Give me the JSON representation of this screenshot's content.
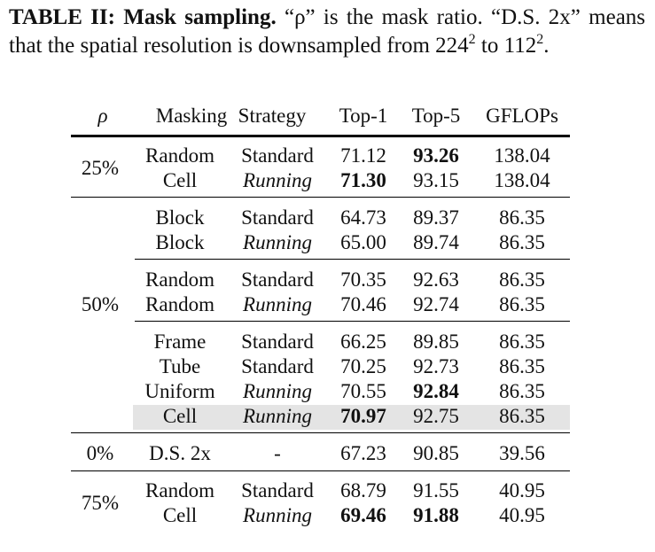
{
  "caption": {
    "label": "TABLE II:",
    "bold": "Mask sampling.",
    "text_1": "“ρ” is the mask ratio. “D.S. 2x” means that the spatial resolution is downsampled from 224",
    "sup_1": "2",
    "text_2": " to 112",
    "sup_2": "2",
    "text_3": "."
  },
  "table": {
    "headers": {
      "rho": "ρ",
      "masking": "Masking",
      "strategy": "Strategy",
      "top1": "Top-1",
      "top5": "Top-5",
      "gflops": "GFLOPs"
    },
    "groups": [
      {
        "ratio": "25%",
        "rows": [
          {
            "masking": "Random",
            "strategy": "Standard",
            "top1": "71.12",
            "top5": "93.26",
            "gflops": "138.04",
            "top1_bold": false,
            "top5_bold": true,
            "highlight": false
          },
          {
            "masking": "Cell",
            "strategy": "Running",
            "top1": "71.30",
            "top5": "93.15",
            "gflops": "138.04",
            "top1_bold": true,
            "top5_bold": false,
            "highlight": false
          }
        ]
      },
      {
        "ratio": "50%",
        "rows": [
          {
            "masking": "Block",
            "strategy": "Standard",
            "top1": "64.73",
            "top5": "89.37",
            "gflops": "86.35",
            "top1_bold": false,
            "top5_bold": false,
            "highlight": false
          },
          {
            "masking": "Block",
            "strategy": "Running",
            "top1": "65.00",
            "top5": "89.74",
            "gflops": "86.35",
            "top1_bold": false,
            "top5_bold": false,
            "highlight": false
          },
          {
            "masking": "Random",
            "strategy": "Standard",
            "top1": "70.35",
            "top5": "92.63",
            "gflops": "86.35",
            "top1_bold": false,
            "top5_bold": false,
            "highlight": false
          },
          {
            "masking": "Random",
            "strategy": "Running",
            "top1": "70.46",
            "top5": "92.74",
            "gflops": "86.35",
            "top1_bold": false,
            "top5_bold": false,
            "highlight": false
          },
          {
            "masking": "Frame",
            "strategy": "Standard",
            "top1": "66.25",
            "top5": "89.85",
            "gflops": "86.35",
            "top1_bold": false,
            "top5_bold": false,
            "highlight": false
          },
          {
            "masking": "Tube",
            "strategy": "Standard",
            "top1": "70.25",
            "top5": "92.73",
            "gflops": "86.35",
            "top1_bold": false,
            "top5_bold": false,
            "highlight": false
          },
          {
            "masking": "Uniform",
            "strategy": "Running",
            "top1": "70.55",
            "top5": "92.84",
            "gflops": "86.35",
            "top1_bold": false,
            "top5_bold": true,
            "highlight": false
          },
          {
            "masking": "Cell",
            "strategy": "Running",
            "top1": "70.97",
            "top5": "92.75",
            "gflops": "86.35",
            "top1_bold": true,
            "top5_bold": false,
            "highlight": true
          }
        ]
      },
      {
        "ratio": "0%",
        "rows": [
          {
            "masking": "D.S. 2x",
            "strategy": "-",
            "top1": "67.23",
            "top5": "90.85",
            "gflops": "39.56",
            "top1_bold": false,
            "top5_bold": false,
            "highlight": false
          }
        ]
      },
      {
        "ratio": "75%",
        "rows": [
          {
            "masking": "Random",
            "strategy": "Standard",
            "top1": "68.79",
            "top5": "91.55",
            "gflops": "40.95",
            "top1_bold": false,
            "top5_bold": false,
            "highlight": false
          },
          {
            "masking": "Cell",
            "strategy": "Running",
            "top1": "69.46",
            "top5": "91.88",
            "gflops": "40.95",
            "top1_bold": true,
            "top5_bold": true,
            "highlight": false
          }
        ]
      }
    ]
  }
}
